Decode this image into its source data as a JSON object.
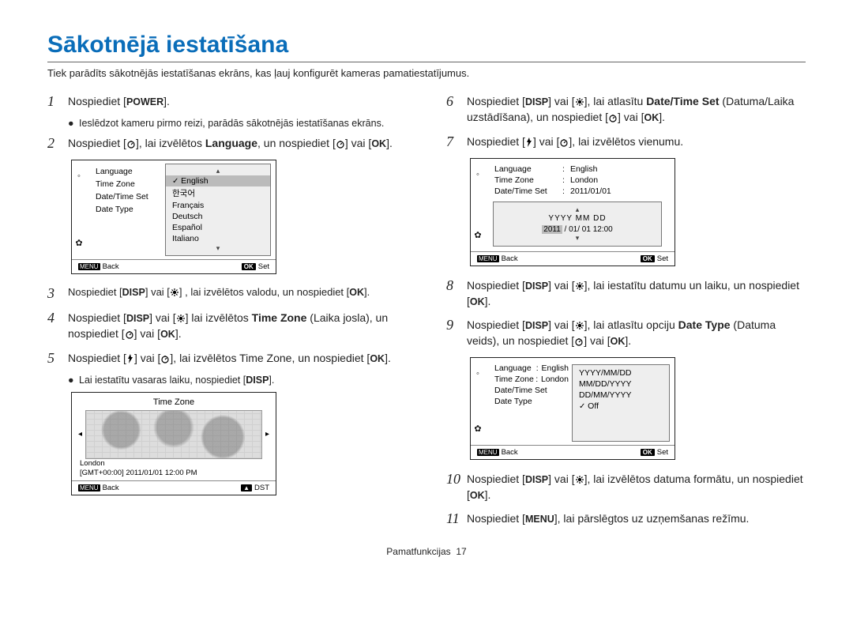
{
  "page": {
    "title": "Sākotnējā iestatīšana",
    "subtitle": "Tiek parādīts sākotnējās iestatīšanas ekrāns, kas ļauj konfigurēt kameras pamatiestatījumus.",
    "footer_section": "Pamatfunkcijas",
    "footer_page": "17"
  },
  "labels": {
    "POWER": "POWER",
    "DISP": "DISP",
    "OK": "OK",
    "MENU": "MENU"
  },
  "steps": {
    "s1": {
      "text_a": "Nospiediet [",
      "text_b": "].",
      "bullet": "Ieslēdzot kameru pirmo reizi, parādās sākotnējās iestatīšanas ekrāns."
    },
    "s2": {
      "text": "Nospiediet [🕘], lai izvēlētos Language, un nospiediet [🕘] vai [OK].",
      "bold": "Language"
    },
    "s3": {
      "text": "Nospiediet [DISP] vai [🌼] , lai izvēlētos valodu, un nospiediet [OK]."
    },
    "s4": {
      "text": "Nospiediet [DISP] vai [🌼] lai izvēlētos Time Zone (Laika josla), un nospiediet [🕘] vai [OK].",
      "bold": "Time Zone"
    },
    "s5": {
      "text": "Nospiediet [⚡] vai [🕘], lai izvēlētos Time Zone, un nospiediet [OK].",
      "bullet": "Lai iestatītu vasaras laiku, nospiediet [DISP]."
    },
    "s6": {
      "text": "Nospiediet [DISP] vai [🌼], lai atlasītu Date/Time Set (Datuma/Laika uzstādīšana), un nospiediet [🕘] vai [OK].",
      "bold": "Date/Time Set"
    },
    "s7": {
      "text": "Nospiediet [⚡] vai [🕘], lai izvēlētos vienumu."
    },
    "s8": {
      "text": "Nospiediet [DISP] vai [🌼], lai iestatītu datumu un laiku, un nospiediet [OK]."
    },
    "s9": {
      "text": "Nospiediet [DISP] vai [🌼], lai atlasītu opciju Date Type (Datuma veids), un nospiediet [🕘] vai [OK].",
      "bold": "Date Type"
    },
    "s10": {
      "text": "Nospiediet [DISP] vai [🌼], lai izvēlētos datuma formātu, un nospiediet [OK]."
    },
    "s11": {
      "text": "Nospiediet [MENU], lai pārslēgtos uz uzņemšanas režīmu."
    }
  },
  "screen1": {
    "menu": [
      "Language",
      "Time Zone",
      "Date/Time Set",
      "Date Type"
    ],
    "options": [
      "English",
      "한국어",
      "Français",
      "Deutsch",
      "Español",
      "Italiano"
    ],
    "selected_idx": 0,
    "footer_back": "Back",
    "footer_set": "Set"
  },
  "screen_tz": {
    "title": "Time Zone",
    "city": "London",
    "info": "[GMT+00:00]   2011/01/01   12:00 PM",
    "footer_back": "Back",
    "footer_dst": "DST"
  },
  "screen_dt": {
    "rows": [
      {
        "k": "Language",
        "v": "English"
      },
      {
        "k": "Time Zone",
        "v": "London"
      },
      {
        "k": "Date/Time Set",
        "v": "2011/01/01"
      }
    ],
    "date_head": "YYYY  MM  DD",
    "date_line": {
      "year": "2011",
      "rest": " / 01/ 01   12:00"
    },
    "footer_back": "Back",
    "footer_set": "Set"
  },
  "screen_type": {
    "rows": [
      {
        "k": "Language",
        "v": "English"
      },
      {
        "k": "Time Zone",
        "v": "London"
      },
      {
        "k": "Date/Time Set",
        "v": ""
      },
      {
        "k": "Date Type",
        "v": ""
      }
    ],
    "options": [
      "YYYY/MM/DD",
      "MM/DD/YYYY",
      "DD/MM/YYYY",
      "Off"
    ],
    "checked_idx": 3,
    "footer_back": "Back",
    "footer_set": "Set"
  },
  "colors": {
    "title": "#0a6db9",
    "border": "#222222",
    "panel": "#eeeeee",
    "selected": "#bbbbbb"
  }
}
